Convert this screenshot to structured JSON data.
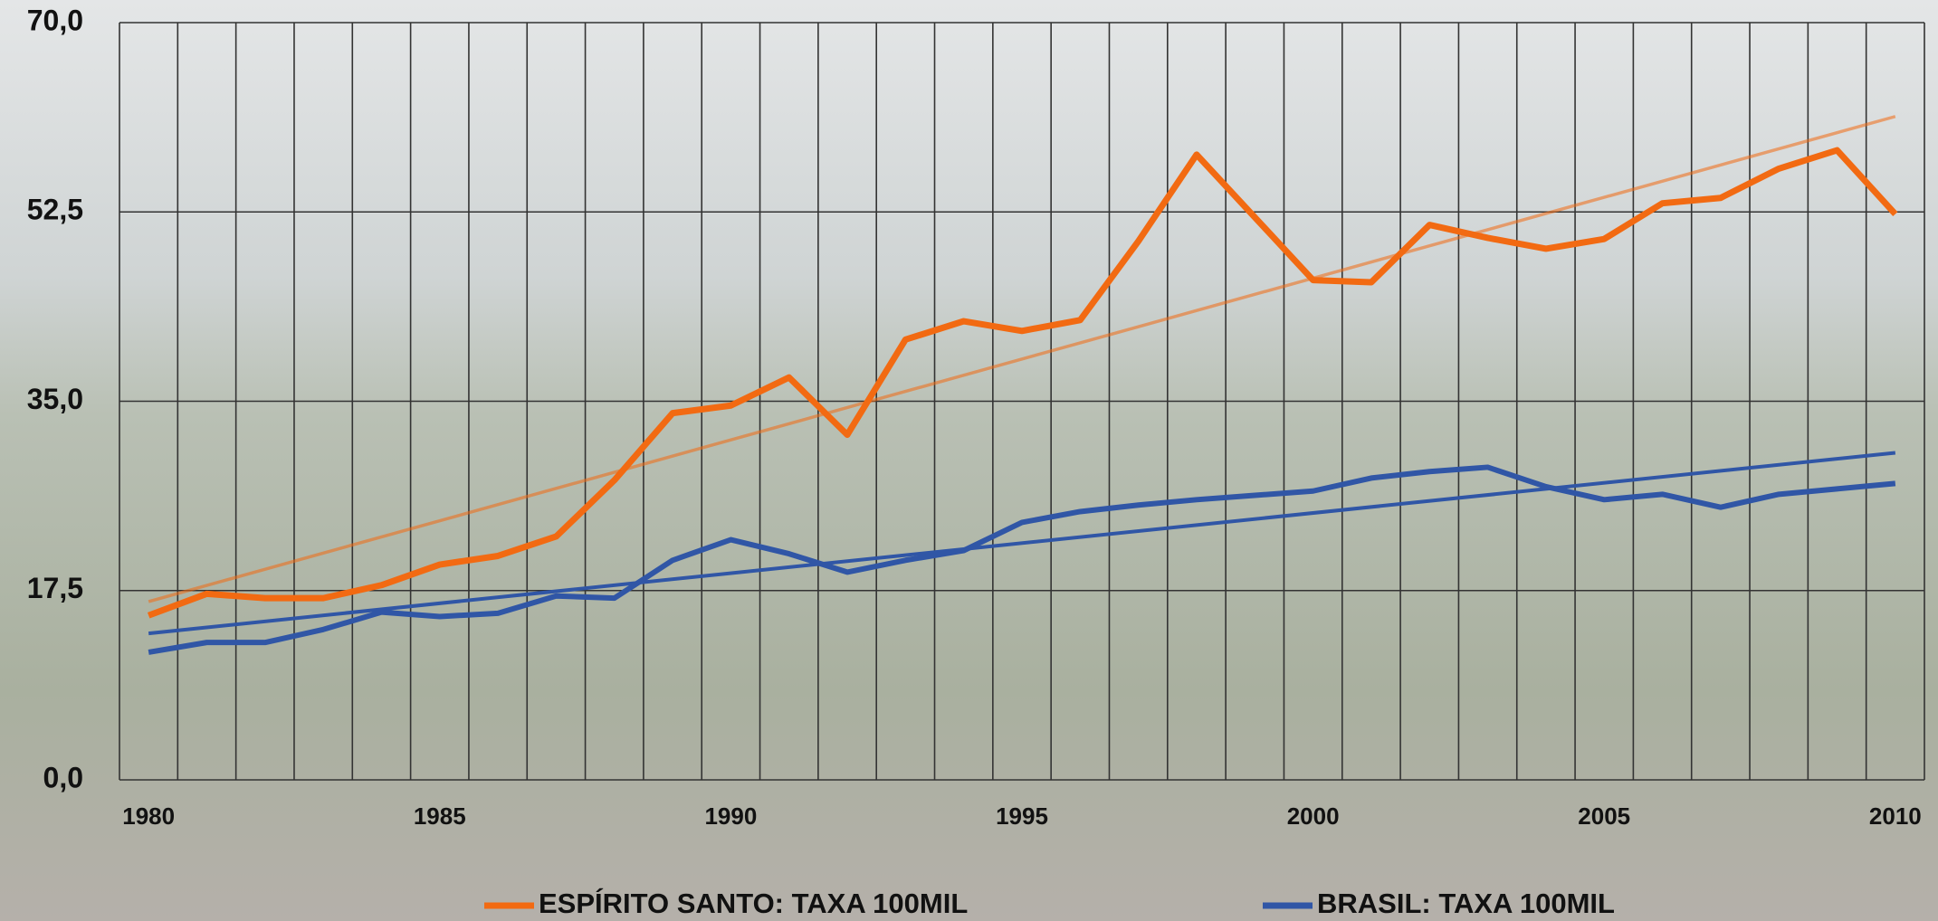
{
  "chart_data": {
    "type": "line",
    "categories": [
      1980,
      null,
      null,
      null,
      null,
      1985,
      null,
      null,
      null,
      null,
      1990,
      null,
      null,
      null,
      null,
      1995,
      null,
      null,
      null,
      null,
      2000,
      null,
      null,
      null,
      null,
      2005,
      null,
      null,
      null,
      null,
      2010
    ],
    "series": [
      {
        "name": "ESPÍRITO SANTO: TAXA 100MIL",
        "color": "#f26a12",
        "values": [
          15.2,
          17.2,
          16.8,
          16.8,
          18.0,
          19.9,
          20.7,
          22.5,
          27.7,
          33.9,
          34.6,
          37.2,
          31.9,
          40.7,
          42.4,
          41.5,
          42.5,
          49.8,
          57.8,
          52.0,
          46.2,
          46.0,
          51.3,
          50.1,
          49.1,
          50.0,
          53.3,
          53.8,
          56.5,
          58.2,
          52.3
        ]
      },
      {
        "name": "BRASIL: TAXA 100MIL",
        "color": "#3056a6",
        "values": [
          11.8,
          12.7,
          12.7,
          13.9,
          15.5,
          15.1,
          15.4,
          17.0,
          16.8,
          20.3,
          22.2,
          20.9,
          19.2,
          20.3,
          21.2,
          23.8,
          24.8,
          25.4,
          25.9,
          26.3,
          26.7,
          27.9,
          28.5,
          28.9,
          27.1,
          25.9,
          26.4,
          25.2,
          26.4,
          26.9,
          27.4
        ]
      }
    ],
    "ylim": [
      0,
      70
    ],
    "yticks": [
      {
        "value": 0,
        "label": "0,0"
      },
      {
        "value": 17.5,
        "label": "17,5"
      },
      {
        "value": 35,
        "label": "35,0"
      },
      {
        "value": 52.5,
        "label": "52,5"
      },
      {
        "value": 70,
        "label": "70,0"
      }
    ],
    "grid": true,
    "trendline": true
  }
}
